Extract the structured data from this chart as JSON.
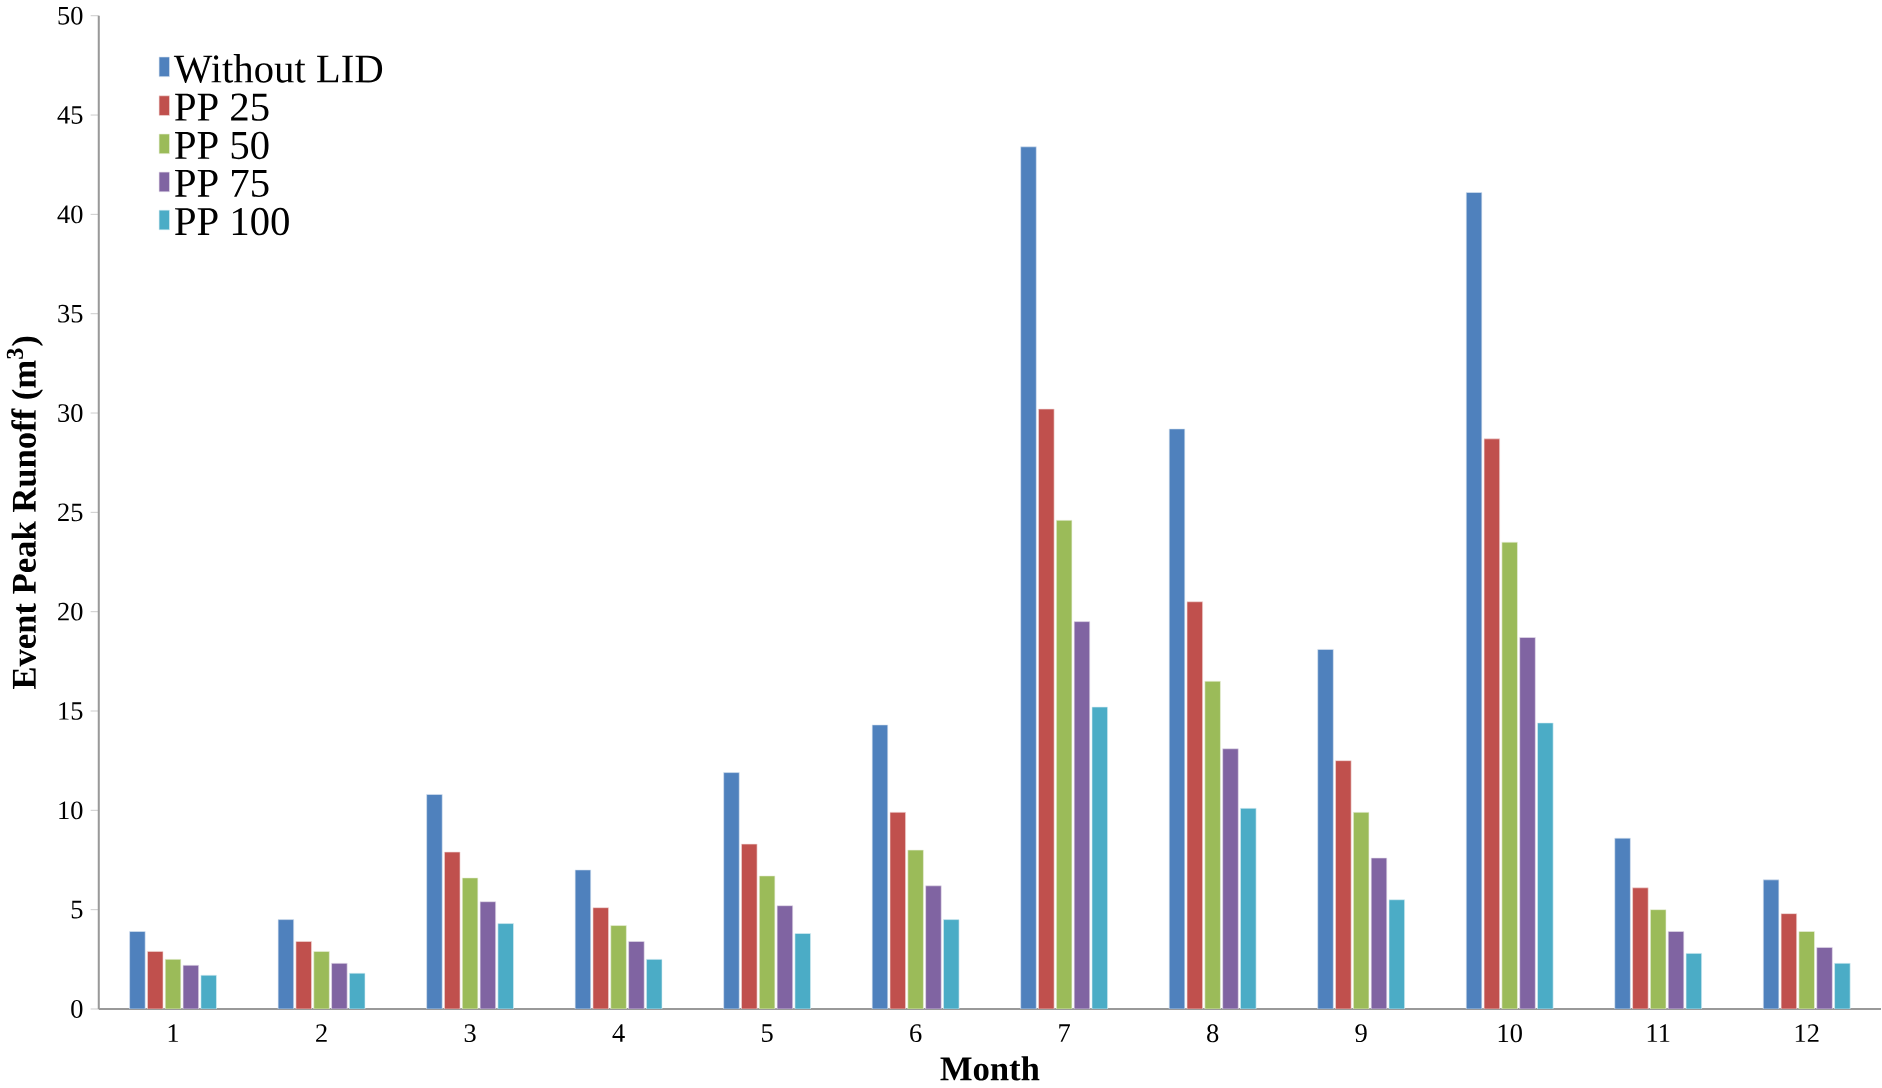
{
  "chart_data": {
    "type": "bar",
    "xlabel": "Month",
    "ylabel": "Event Peak Runoff (m$^{3}$)",
    "categories": [
      "1",
      "2",
      "3",
      "4",
      "5",
      "6",
      "7",
      "8",
      "9",
      "10",
      "11",
      "12"
    ],
    "ylim": [
      0,
      50
    ],
    "yticks": [
      0,
      5,
      10,
      15,
      20,
      25,
      30,
      35,
      40,
      45,
      50
    ],
    "grid": false,
    "legend": "top left",
    "series": [
      {
        "name": "Without LID",
        "color": "#4f81bd",
        "values": [
          3.9,
          4.5,
          10.8,
          7.0,
          11.9,
          14.3,
          43.4,
          29.2,
          18.1,
          41.1,
          8.6,
          6.5
        ]
      },
      {
        "name": "PP 25",
        "color": "#c0504d",
        "values": [
          2.9,
          3.4,
          7.9,
          5.1,
          8.3,
          9.9,
          30.2,
          20.5,
          12.5,
          28.7,
          6.1,
          4.8
        ]
      },
      {
        "name": "PP 50",
        "color": "#9bbb59",
        "values": [
          2.5,
          2.9,
          6.6,
          4.2,
          6.7,
          8.0,
          24.6,
          16.5,
          9.9,
          23.5,
          5.0,
          3.9
        ]
      },
      {
        "name": "PP 75",
        "color": "#8064a2",
        "values": [
          2.2,
          2.3,
          5.4,
          3.4,
          5.2,
          6.2,
          19.5,
          13.1,
          7.6,
          18.7,
          3.9,
          3.1
        ]
      },
      {
        "name": "PP 100",
        "color": "#4bacc6",
        "values": [
          1.7,
          1.8,
          4.3,
          2.5,
          3.8,
          4.5,
          15.2,
          10.1,
          5.5,
          14.4,
          2.8,
          2.3
        ]
      }
    ]
  }
}
